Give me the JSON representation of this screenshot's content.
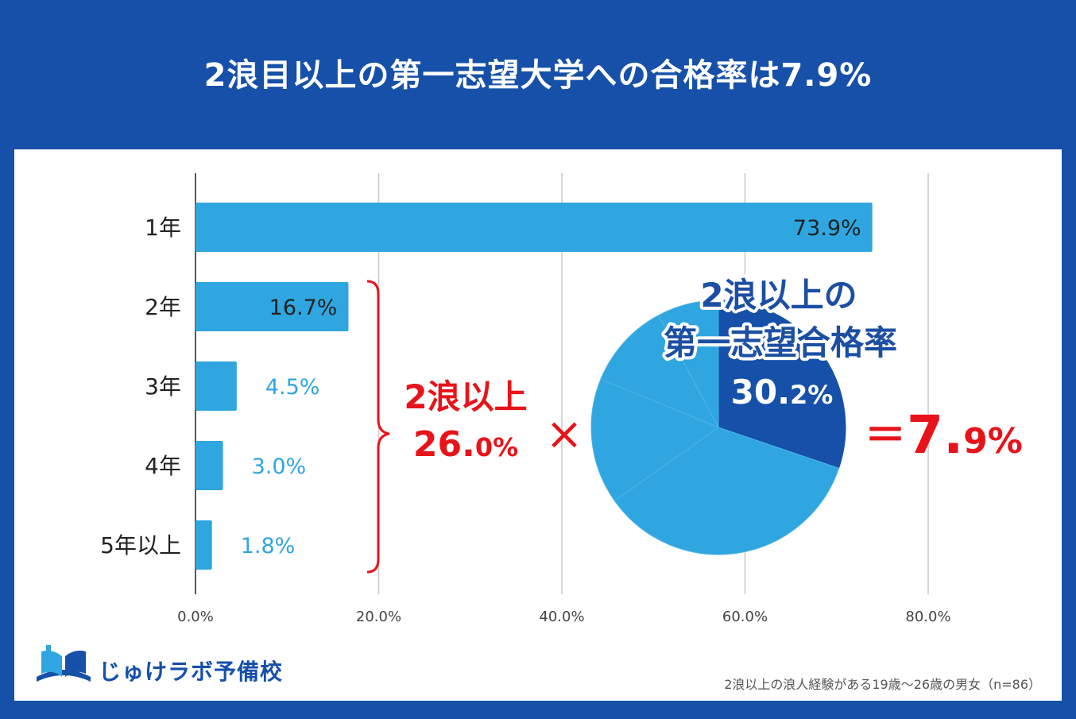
{
  "header": {
    "title": "2浪目以上の第一志望大学への合格率は7.9%"
  },
  "chart_data": [
    {
      "type": "bar",
      "orientation": "horizontal",
      "categories": [
        "1年",
        "2年",
        "3年",
        "4年",
        "5年以上"
      ],
      "values": [
        73.9,
        16.7,
        4.5,
        3.0,
        1.8
      ],
      "value_labels": [
        "73.9%",
        "16.7%",
        "4.5%",
        "3.0%",
        "1.8%"
      ],
      "xlim": [
        0,
        80
      ],
      "xticks": [
        0,
        20,
        40,
        60,
        80
      ],
      "xtick_labels": [
        "0.0%",
        "20.0%",
        "40.0%",
        "60.0%",
        "80.0%"
      ],
      "grid": true,
      "bar_color": "#2fa6e0"
    },
    {
      "type": "pie",
      "title_lines": [
        "2浪以上の",
        "第一志望合格率"
      ],
      "highlight_value": 30.2,
      "highlight_label_main": "30.",
      "highlight_label_small": "2%",
      "slices": [
        30.2,
        35.0,
        16.0,
        11.0,
        7.8
      ],
      "highlight_color": "#1650a8",
      "other_color": "#2fa6e0"
    }
  ],
  "annotation": {
    "group_label": "2浪以上",
    "group_value_main": "26.",
    "group_value_small": "0%",
    "times_symbol": "×",
    "result_eq": "＝",
    "result_main": "7.",
    "result_small": "9%",
    "accent_color": "#e8131a"
  },
  "footer": {
    "logo_text": "じゅけラボ予備校",
    "note": "2浪以上の浪人経験がある19歳～26歳の男女（n=86）"
  }
}
